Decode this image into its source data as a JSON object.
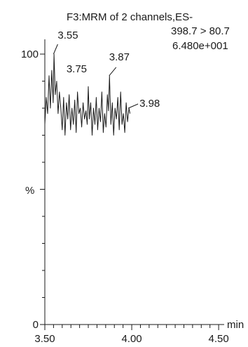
{
  "chart_data": {
    "type": "line",
    "header": [
      "F3:MRM of 2 channels,ES-",
      "398.7 > 80.7",
      "6.480e+001"
    ],
    "ylabel": "%",
    "xunit": "min",
    "xlim": [
      3.5,
      4.55
    ],
    "ylim": [
      0,
      100
    ],
    "xticks": [
      3.5,
      4.0,
      4.5
    ],
    "xtick_labels": [
      "3.50",
      "4.00",
      "4.50"
    ],
    "yticks": [
      0,
      100
    ],
    "ytick_labels": [
      "0",
      "100"
    ],
    "peak_labels": [
      {
        "x": 3.55,
        "y": 100,
        "text": "3.55"
      },
      {
        "x": 3.75,
        "y": 88,
        "text": "3.75"
      },
      {
        "x": 3.87,
        "y": 92,
        "text": "3.87"
      },
      {
        "x": 3.98,
        "y": 80,
        "text": "3.98"
      }
    ],
    "series": [
      {
        "x": [
          3.5,
          3.508,
          3.516,
          3.524,
          3.532,
          3.54,
          3.548,
          3.553,
          3.56,
          3.568,
          3.576,
          3.584,
          3.592,
          3.6,
          3.608,
          3.616,
          3.624,
          3.632,
          3.64,
          3.648,
          3.656,
          3.664,
          3.672,
          3.68,
          3.688,
          3.696,
          3.704,
          3.712,
          3.72,
          3.728,
          3.736,
          3.744,
          3.75,
          3.756,
          3.764,
          3.772,
          3.78,
          3.788,
          3.796,
          3.804,
          3.812,
          3.82,
          3.828,
          3.836,
          3.844,
          3.852,
          3.86,
          3.866,
          3.872,
          3.88,
          3.888,
          3.896,
          3.904,
          3.912,
          3.92,
          3.928,
          3.936,
          3.944,
          3.952,
          3.96,
          3.968,
          3.976,
          3.984,
          3.99
        ],
        "y": [
          74,
          84,
          78,
          92,
          80,
          94,
          82,
          100,
          85,
          90,
          78,
          86,
          80,
          72,
          84,
          70,
          82,
          76,
          85,
          72,
          80,
          74,
          83,
          71,
          86,
          78,
          80,
          73,
          82,
          76,
          79,
          74,
          88,
          76,
          82,
          70,
          80,
          74,
          84,
          72,
          80,
          75,
          86,
          71,
          78,
          73,
          85,
          79,
          92,
          74,
          82,
          70,
          80,
          76,
          84,
          72,
          86,
          74,
          78,
          71,
          82,
          75,
          80,
          78
        ]
      }
    ]
  }
}
